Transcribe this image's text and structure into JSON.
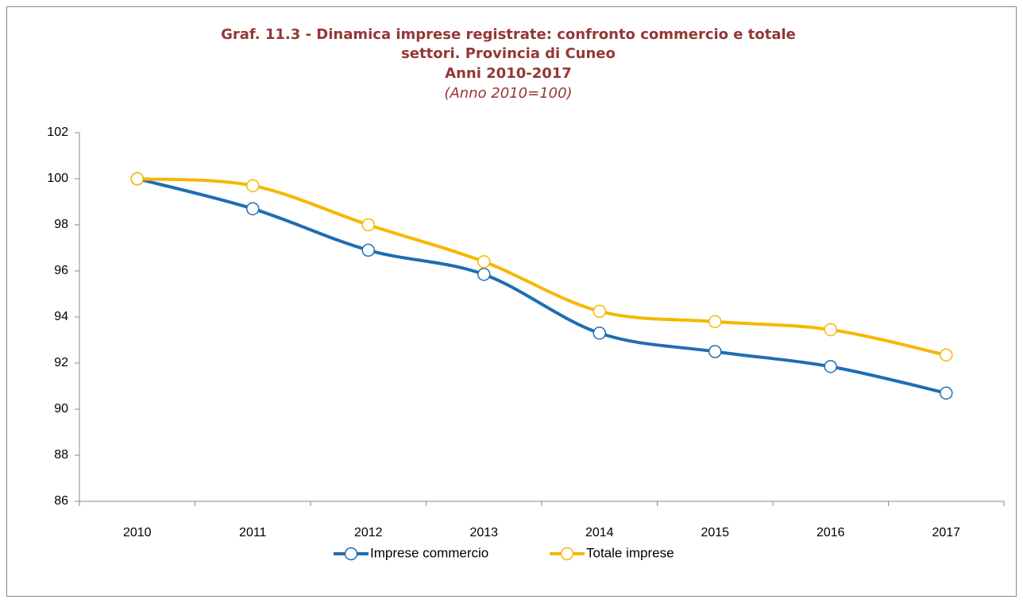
{
  "chart_data": {
    "type": "line",
    "title": [
      "Graf. 11.3 - Dinamica imprese registrate: confronto commercio e totale",
      "settori. Provincia di Cuneo",
      "Anni 2010-2017"
    ],
    "subtitle": "(Anno 2010=100)",
    "categories": [
      "2010",
      "2011",
      "2012",
      "2013",
      "2014",
      "2015",
      "2016",
      "2017"
    ],
    "series": [
      {
        "name": "Imprese commercio",
        "color": "#1f6db3",
        "values": [
          100,
          98.7,
          96.9,
          95.85,
          93.3,
          92.5,
          91.85,
          90.7
        ]
      },
      {
        "name": "Totale imprese",
        "color": "#f5b800",
        "values": [
          100,
          99.7,
          98.0,
          96.4,
          94.25,
          93.8,
          93.45,
          92.35
        ]
      }
    ],
    "ylim": [
      86,
      102
    ],
    "yticks": [
      86,
      88,
      90,
      92,
      94,
      96,
      98,
      100,
      102
    ],
    "grid": false,
    "legend": "bottom"
  }
}
